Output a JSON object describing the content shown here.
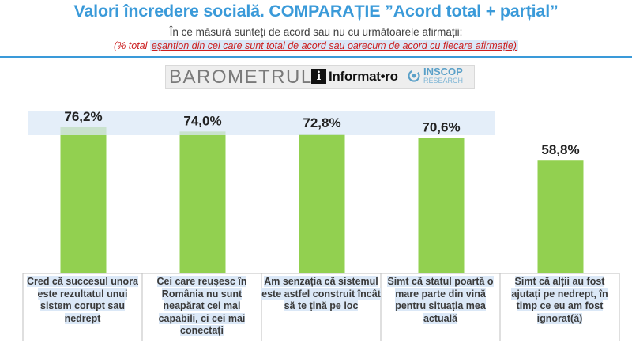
{
  "header": {
    "title": "Valori încredere socială. COMPARAȚIE ”Acord total + parțial”",
    "subtitle": "În ce măsură sunteți de acord sau nu cu următoarele afirmații:",
    "note_prefix": "(% total ",
    "note_inner": "eșantion din cei care sunt total de acord sau oarecum de acord cu fiecare afirmație)"
  },
  "logos": {
    "barometrul": "BAROMETRUL",
    "informat": "Informat•ro",
    "inscop": "INSCOP",
    "inscop_sub": "RESEARCH"
  },
  "colors": {
    "bar": "#92d050",
    "highlight": "#dbe8f7",
    "title": "#3a9ad9"
  },
  "chart_data": {
    "type": "bar",
    "categories": [
      "Cred că succesul unora este rezultatul unui sistem corupt sau nedrept",
      "Cei care reușesc în România nu sunt neapărat cei mai capabili, ci cei mai conectați",
      "Am senzația că sistemul este astfel construit încât să te țină pe loc",
      "Simt că statul poartă o mare parte din vină pentru situația mea actuală",
      "Simt că alții au fost ajutați pe nedrept, în timp ce eu am fost ignorat(ă)"
    ],
    "values": [
      76.2,
      74.0,
      72.8,
      70.6,
      58.8
    ],
    "value_labels": [
      "76,2%",
      "74,0%",
      "72,8%",
      "70,6%",
      "58,8%"
    ],
    "ylim": [
      0,
      100
    ],
    "grid": false
  }
}
